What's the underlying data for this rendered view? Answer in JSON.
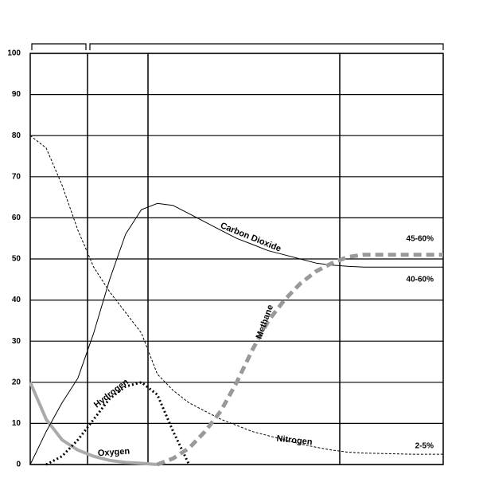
{
  "chart_data": {
    "type": "line",
    "categories": [
      null,
      null,
      null,
      null,
      null,
      null,
      null,
      null,
      null,
      null,
      null,
      null,
      null,
      null,
      null,
      null,
      null,
      null,
      null,
      null,
      null,
      null,
      null,
      null,
      null,
      null,
      null
    ],
    "series": [
      {
        "name": "Nitrogen",
        "color": "#000000",
        "style": "dashed",
        "values": [
          80,
          77,
          68,
          57,
          48,
          42,
          37,
          32,
          22,
          18,
          15,
          13,
          11,
          9.5,
          8,
          7,
          6,
          5,
          4.2,
          3.5,
          3,
          2.8,
          2.7,
          2.6,
          2.5,
          2.5,
          2.5
        ]
      },
      {
        "name": "Oxygen",
        "color": "#aaaaaa",
        "style": "thick",
        "values": [
          20,
          11,
          6,
          3.5,
          2,
          1,
          0.5,
          0.3,
          0,
          null,
          null,
          null,
          null,
          null,
          null,
          null,
          null,
          null,
          null,
          null,
          null,
          null,
          null,
          null,
          null,
          null,
          null
        ]
      },
      {
        "name": "Hydrogen",
        "color": "#000000",
        "style": "dotted",
        "values": [
          null,
          0,
          2,
          6,
          11,
          16,
          19,
          20,
          17,
          8,
          0,
          null,
          null,
          null,
          null,
          null,
          null,
          null,
          null,
          null,
          null,
          null,
          null,
          null,
          null,
          null,
          null
        ]
      },
      {
        "name": "Carbon Dioxide",
        "color": "#000000",
        "style": "thin",
        "values": [
          0,
          8,
          15,
          21,
          32,
          45,
          56,
          62,
          63.5,
          63,
          61,
          59,
          57,
          55,
          53.5,
          52,
          51,
          50,
          49,
          48.5,
          48.2,
          48,
          48,
          48,
          48,
          48,
          48
        ]
      },
      {
        "name": "Methane",
        "color": "#999999",
        "style": "thickdashed",
        "values": [
          null,
          null,
          null,
          null,
          null,
          null,
          null,
          null,
          0,
          1.5,
          4,
          8,
          13,
          20,
          28,
          35,
          40,
          44,
          47,
          49,
          50.5,
          51,
          51,
          51,
          51,
          51,
          51
        ]
      }
    ],
    "annotations": [
      "45-60%",
      "40-60%",
      "2-5%"
    ],
    "ylim": [
      0,
      100
    ],
    "yticks": [
      0,
      10,
      20,
      30,
      40,
      50,
      60,
      70,
      80,
      90,
      100
    ],
    "grid": true
  }
}
